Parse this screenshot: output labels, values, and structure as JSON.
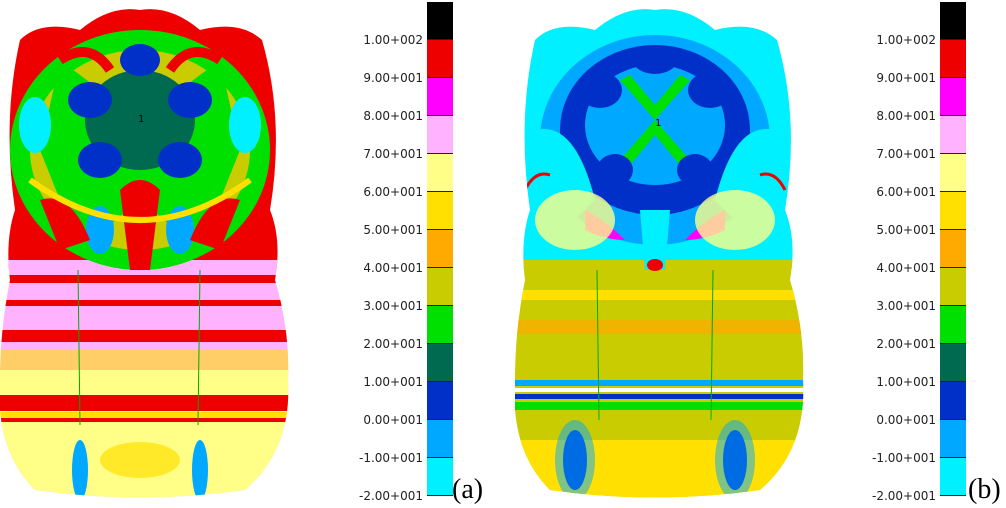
{
  "figures": [
    {
      "id": "a",
      "tag": "(a)",
      "palette": "warm"
    },
    {
      "id": "b",
      "tag": "(b)",
      "palette": "cool"
    }
  ],
  "node_label": "1",
  "legend": {
    "labels": [
      "1.00+002",
      "9.00+001",
      "8.00+001",
      "7.00+001",
      "6.00+001",
      "5.00+001",
      "4.00+001",
      "3.00+001",
      "2.00+001",
      "1.00+001",
      "0.00+001",
      "-1.00+001",
      "-2.00+001"
    ],
    "colors": [
      "#000000",
      "#ee0000",
      "#ff00ff",
      "#ffb3ff",
      "#ffff88",
      "#ffe000",
      "#ffaa00",
      "#c8cc00",
      "#00e000",
      "#006a50",
      "#0030c8",
      "#00a8ff",
      "#00f0ff"
    ]
  }
}
